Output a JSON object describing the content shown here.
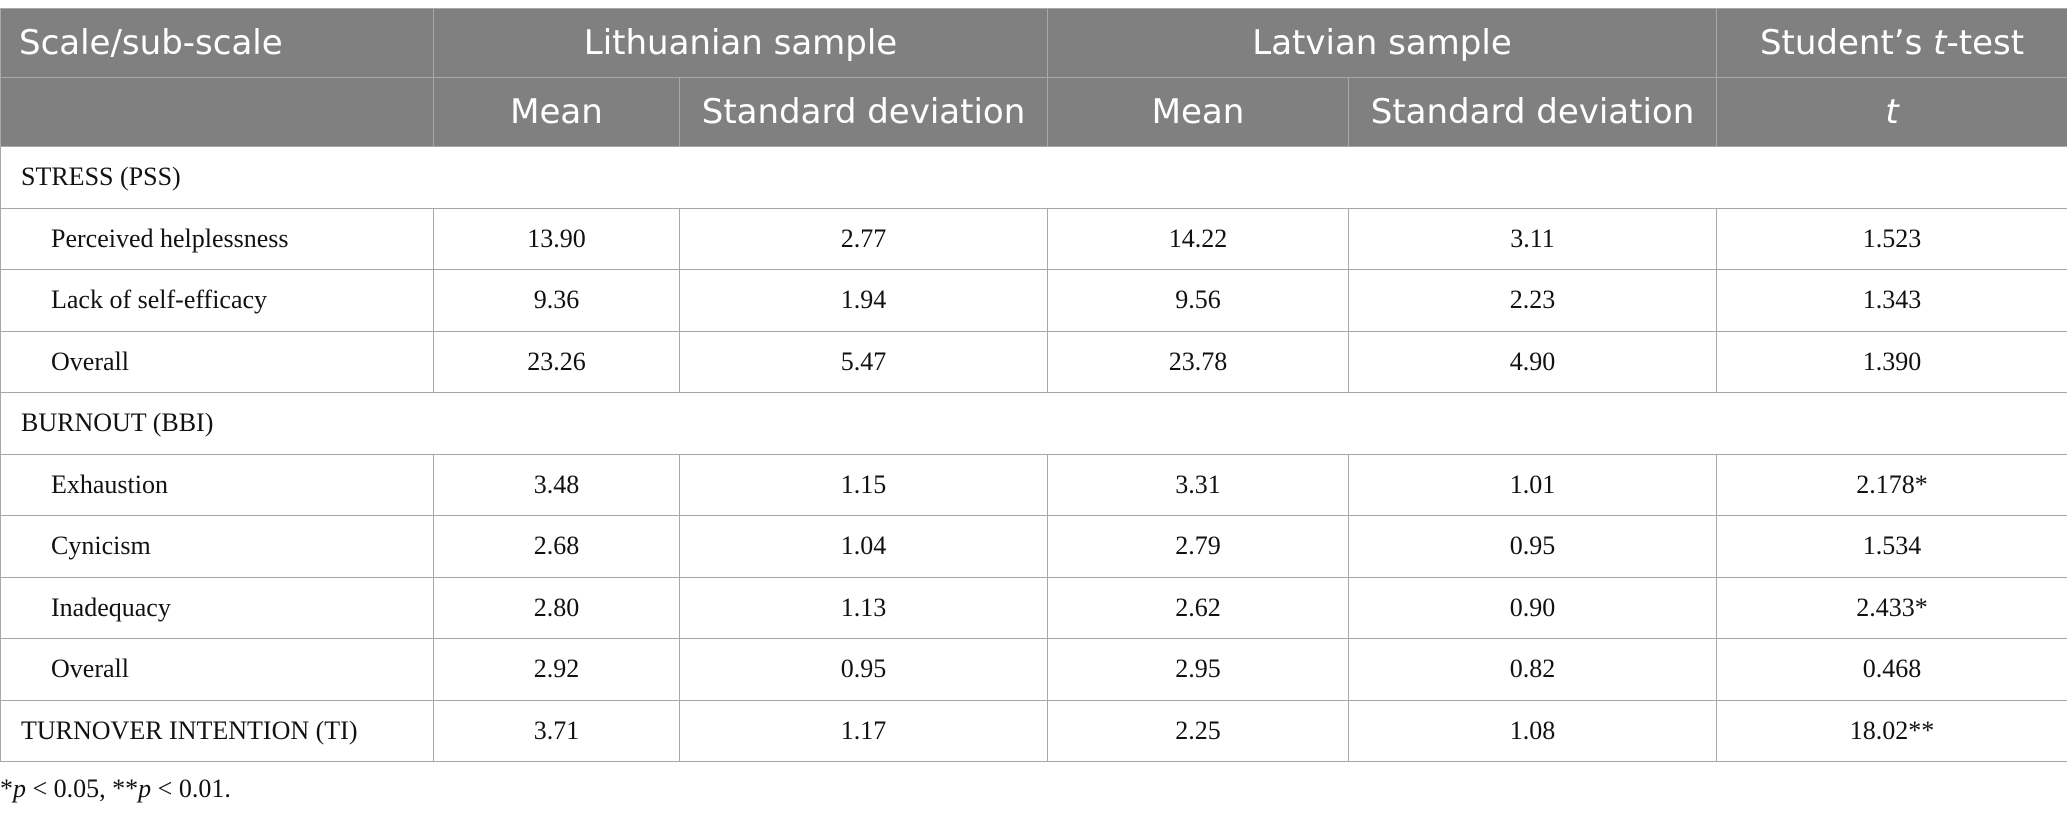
{
  "header": {
    "scale": "Scale/sub-scale",
    "lithuanian": "Lithuanian sample",
    "latvian": "Latvian sample",
    "ttest_prefix": "Student’s ",
    "ttest_t": "t",
    "ttest_suffix": "-test",
    "mean": "Mean",
    "sd": "Standard deviation",
    "t": "t"
  },
  "sections": [
    {
      "title": "STRESS (PSS)",
      "rows": [
        {
          "label": "Perceived helplessness",
          "lt_mean": "13.90",
          "lt_sd": "2.77",
          "lv_mean": "14.22",
          "lv_sd": "3.11",
          "t": "1.523"
        },
        {
          "label": "Lack of self-efficacy",
          "lt_mean": "9.36",
          "lt_sd": "1.94",
          "lv_mean": "9.56",
          "lv_sd": "2.23",
          "t": "1.343"
        },
        {
          "label": "Overall",
          "lt_mean": "23.26",
          "lt_sd": "5.47",
          "lv_mean": "23.78",
          "lv_sd": "4.90",
          "t": "1.390"
        }
      ]
    },
    {
      "title": "BURNOUT (BBI)",
      "rows": [
        {
          "label": "Exhaustion",
          "lt_mean": "3.48",
          "lt_sd": "1.15",
          "lv_mean": "3.31",
          "lv_sd": "1.01",
          "t": "2.178*"
        },
        {
          "label": "Cynicism",
          "lt_mean": "2.68",
          "lt_sd": "1.04",
          "lv_mean": "2.79",
          "lv_sd": "0.95",
          "t": "1.534"
        },
        {
          "label": "Inadequacy",
          "lt_mean": "2.80",
          "lt_sd": "1.13",
          "lv_mean": "2.62",
          "lv_sd": "0.90",
          "t": "2.433*"
        },
        {
          "label": "Overall",
          "lt_mean": "2.92",
          "lt_sd": "0.95",
          "lv_mean": "2.95",
          "lv_sd": "0.82",
          "t": "0.468"
        }
      ]
    }
  ],
  "turnover": {
    "label": "TURNOVER INTENTION (TI)",
    "lt_mean": "3.71",
    "lt_sd": "1.17",
    "lv_mean": "2.25",
    "lv_sd": "1.08",
    "t": "18.02**"
  },
  "footnote": {
    "star1": "*",
    "p1": "p",
    "text1": " < 0.05, **",
    "p2": "p",
    "text2": " < 0.01."
  }
}
